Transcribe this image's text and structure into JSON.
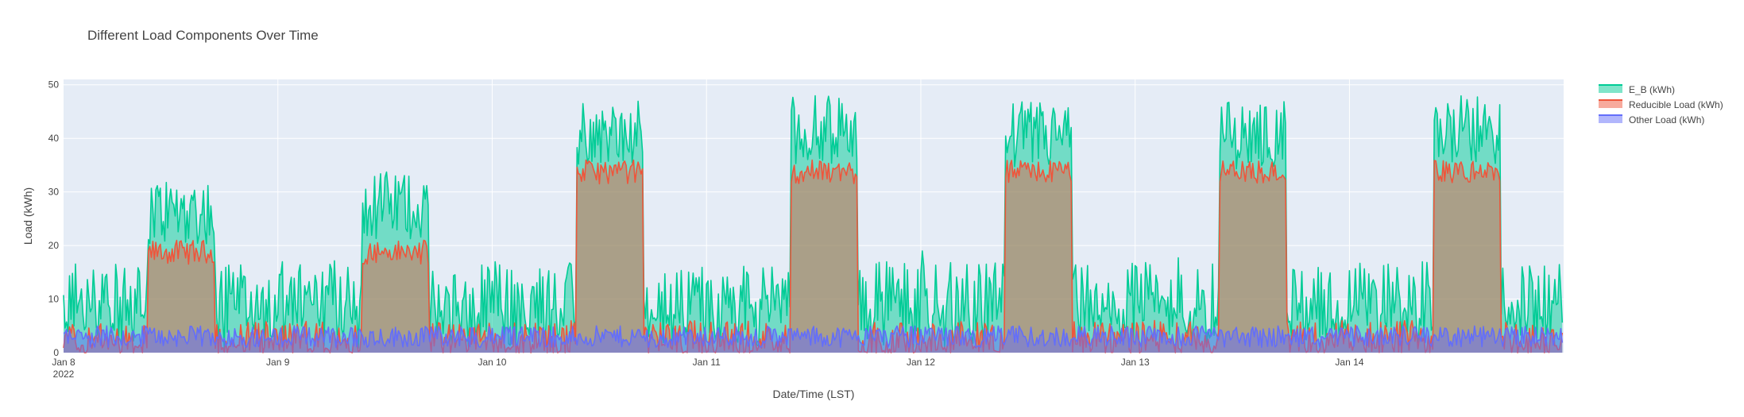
{
  "chart_data": {
    "type": "area",
    "title": "Different Load Components Over Time",
    "xlabel": "Date/Time (LST)",
    "ylabel": "Load (kWh)",
    "ylim": [
      0,
      51
    ],
    "xlim": [
      "2022-01-08 00:00",
      "2022-01-14 23:59"
    ],
    "grid": true,
    "legend_position": "top-right",
    "x_ticks": [
      {
        "x": "2022-01-08",
        "label": "Jan 8",
        "sublabel": "2022"
      },
      {
        "x": "2022-01-09",
        "label": "Jan 9"
      },
      {
        "x": "2022-01-10",
        "label": "Jan 10"
      },
      {
        "x": "2022-01-11",
        "label": "Jan 11"
      },
      {
        "x": "2022-01-12",
        "label": "Jan 12"
      },
      {
        "x": "2022-01-13",
        "label": "Jan 13"
      },
      {
        "x": "2022-01-14",
        "label": "Jan 14"
      }
    ],
    "y_ticks": [
      0,
      10,
      20,
      30,
      40,
      50
    ],
    "resolution_minutes": 10,
    "series": [
      {
        "name": "E_B (kWh)",
        "color": "#00cc96",
        "daily_profile": {
          "work_hours": [
            "09:30",
            "16:50"
          ],
          "work_level_by_day": [
            27,
            28,
            41,
            42,
            41,
            41,
            42
          ],
          "off_hours_range": [
            0,
            18
          ]
        }
      },
      {
        "name": "Reducible Load (kWh)",
        "color": "#ef553b",
        "daily_profile": {
          "work_hours": [
            "09:30",
            "16:50"
          ],
          "work_level_by_day": [
            19,
            19,
            34,
            34,
            34,
            34,
            34
          ],
          "off_hours_range": [
            0,
            6
          ]
        }
      },
      {
        "name": "Other Load (kWh)",
        "color": "#636efa",
        "daily_profile": {
          "work_hours": [
            "09:30",
            "16:50"
          ],
          "level_range": [
            1,
            5
          ]
        }
      }
    ]
  }
}
